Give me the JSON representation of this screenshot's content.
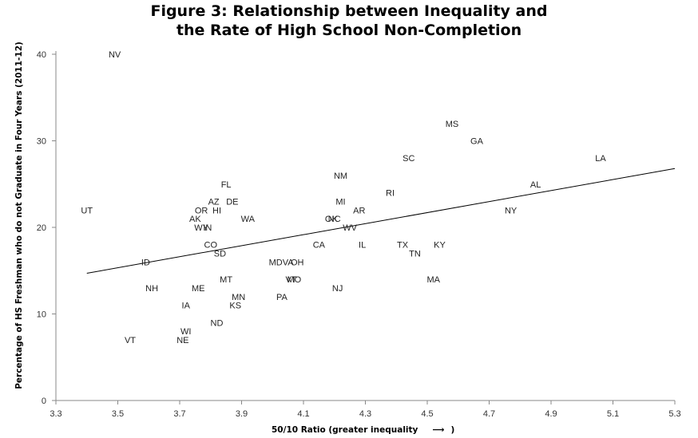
{
  "title_line1": "Figure 3: Relationship between Inequality and",
  "title_line2": "the Rate of High School Non-Completion",
  "chart_data": {
    "type": "scatter",
    "title": "Figure 3: Relationship between Inequality and the Rate of High School Non-Completion",
    "xlabel": "50/10 Ratio (greater inequality",
    "xlabel_arrow": "⟶",
    "xlabel_close": ")",
    "ylabel": "Percentage of HS Freshman who do not Graduate in Four Years (2011-12)",
    "xlim": [
      3.3,
      5.3
    ],
    "ylim": [
      0,
      40
    ],
    "x_ticks": [
      "3.3",
      "3.5",
      "3.7",
      "3.9",
      "4.1",
      "4.3",
      "4.5",
      "4.7",
      "4.9",
      "5.1",
      "5.3"
    ],
    "y_ticks": [
      "0",
      "10",
      "20",
      "30",
      "40"
    ],
    "trendline": {
      "x": [
        3.4,
        5.3
      ],
      "y": [
        14.7,
        26.8
      ]
    },
    "points": [
      {
        "label": "NV",
        "x": 3.49,
        "y": 40
      },
      {
        "label": "UT",
        "x": 3.4,
        "y": 22
      },
      {
        "label": "MS",
        "x": 4.58,
        "y": 32
      },
      {
        "label": "GA",
        "x": 4.66,
        "y": 30
      },
      {
        "label": "SC",
        "x": 4.44,
        "y": 28
      },
      {
        "label": "LA",
        "x": 5.06,
        "y": 28
      },
      {
        "label": "NM",
        "x": 4.22,
        "y": 26
      },
      {
        "label": "FL",
        "x": 3.85,
        "y": 25
      },
      {
        "label": "AL",
        "x": 4.85,
        "y": 25
      },
      {
        "label": "RI",
        "x": 4.38,
        "y": 24
      },
      {
        "label": "AZ",
        "x": 3.81,
        "y": 23
      },
      {
        "label": "DE",
        "x": 3.87,
        "y": 23
      },
      {
        "label": "MI",
        "x": 4.22,
        "y": 23
      },
      {
        "label": "OR",
        "x": 3.77,
        "y": 22
      },
      {
        "label": "HI",
        "x": 3.82,
        "y": 22
      },
      {
        "label": "AR",
        "x": 4.28,
        "y": 22
      },
      {
        "label": "NY",
        "x": 4.77,
        "y": 22
      },
      {
        "label": "AK",
        "x": 3.75,
        "y": 21
      },
      {
        "label": "WA",
        "x": 3.92,
        "y": 21
      },
      {
        "label": "OK",
        "x": 4.19,
        "y": 21
      },
      {
        "label": "NC",
        "x": 4.2,
        "y": 21
      },
      {
        "label": "WY",
        "x": 3.77,
        "y": 20
      },
      {
        "label": "IN",
        "x": 3.79,
        "y": 20
      },
      {
        "label": "WV",
        "x": 4.25,
        "y": 20
      },
      {
        "label": "CO",
        "x": 3.8,
        "y": 18
      },
      {
        "label": "CA",
        "x": 4.15,
        "y": 18
      },
      {
        "label": "IL",
        "x": 4.29,
        "y": 18
      },
      {
        "label": "TX",
        "x": 4.42,
        "y": 18
      },
      {
        "label": "KY",
        "x": 4.54,
        "y": 18
      },
      {
        "label": "SD",
        "x": 3.83,
        "y": 17
      },
      {
        "label": "TN",
        "x": 4.46,
        "y": 17
      },
      {
        "label": "ID",
        "x": 3.59,
        "y": 16
      },
      {
        "label": "MD",
        "x": 4.01,
        "y": 16
      },
      {
        "label": "VA",
        "x": 4.05,
        "y": 16
      },
      {
        "label": "OH",
        "x": 4.08,
        "y": 16
      },
      {
        "label": "MT",
        "x": 3.85,
        "y": 14
      },
      {
        "label": "VT",
        "x": 4.06,
        "y": 14
      },
      {
        "label": "MO",
        "x": 4.07,
        "y": 14
      },
      {
        "label": "MA",
        "x": 4.52,
        "y": 14
      },
      {
        "label": "NH",
        "x": 3.61,
        "y": 13
      },
      {
        "label": "ME",
        "x": 3.76,
        "y": 13
      },
      {
        "label": "NJ",
        "x": 4.21,
        "y": 13
      },
      {
        "label": "MN",
        "x": 3.89,
        "y": 12
      },
      {
        "label": "PA",
        "x": 4.03,
        "y": 12
      },
      {
        "label": "IA",
        "x": 3.72,
        "y": 11
      },
      {
        "label": "KS",
        "x": 3.88,
        "y": 11
      },
      {
        "label": "ND",
        "x": 3.82,
        "y": 9
      },
      {
        "label": "WI",
        "x": 3.72,
        "y": 8
      },
      {
        "label": "VT",
        "x": 3.54,
        "y": 7
      },
      {
        "label": "NE",
        "x": 3.71,
        "y": 7
      }
    ]
  }
}
